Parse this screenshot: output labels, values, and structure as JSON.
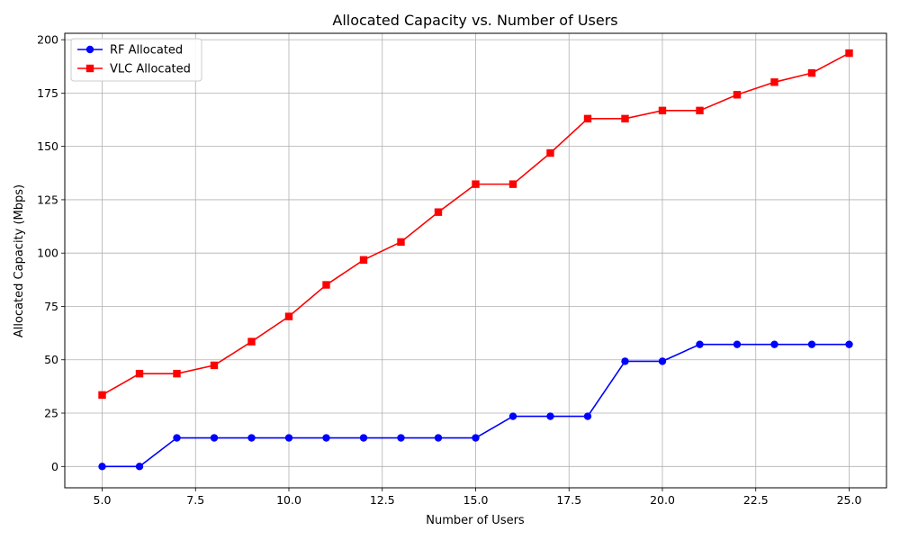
{
  "chart_data": {
    "type": "line",
    "title": "Allocated Capacity vs. Number of Users",
    "xlabel": "Number of Users",
    "ylabel": "Allocated Capacity (Mbps)",
    "xlim": [
      4.0,
      26.0
    ],
    "ylim": [
      -10,
      203
    ],
    "x_ticks": [
      5.0,
      7.5,
      10.0,
      12.5,
      15.0,
      17.5,
      20.0,
      22.5,
      25.0
    ],
    "x_tick_labels": [
      "5.0",
      "7.5",
      "10.0",
      "12.5",
      "15.0",
      "17.5",
      "20.0",
      "22.5",
      "25.0"
    ],
    "y_ticks": [
      0,
      25,
      50,
      75,
      100,
      125,
      150,
      175,
      200
    ],
    "y_tick_labels": [
      "0",
      "25",
      "50",
      "75",
      "100",
      "125",
      "150",
      "175",
      "200"
    ],
    "grid": true,
    "legend_position": "top-left",
    "x": [
      5,
      6,
      7,
      8,
      9,
      10,
      11,
      12,
      13,
      14,
      15,
      16,
      17,
      18,
      19,
      20,
      21,
      22,
      23,
      24,
      25
    ],
    "series": [
      {
        "name": "RF Allocated",
        "color": "#0000ff",
        "marker": "circle",
        "values": [
          0,
          0,
          13.4,
          13.4,
          13.4,
          13.4,
          13.4,
          13.4,
          13.4,
          13.4,
          13.4,
          23.5,
          23.5,
          23.5,
          49.3,
          49.3,
          57.2,
          57.2,
          57.2,
          57.2,
          57.2
        ]
      },
      {
        "name": "VLC Allocated",
        "color": "#ff0000",
        "marker": "square",
        "values": [
          33.5,
          43.5,
          43.5,
          47.4,
          58.5,
          70.3,
          85.1,
          96.8,
          105.2,
          119.2,
          132.3,
          132.3,
          146.9,
          163.0,
          163.0,
          166.8,
          166.8,
          174.2,
          180.1,
          184.4,
          193.7
        ]
      }
    ]
  }
}
